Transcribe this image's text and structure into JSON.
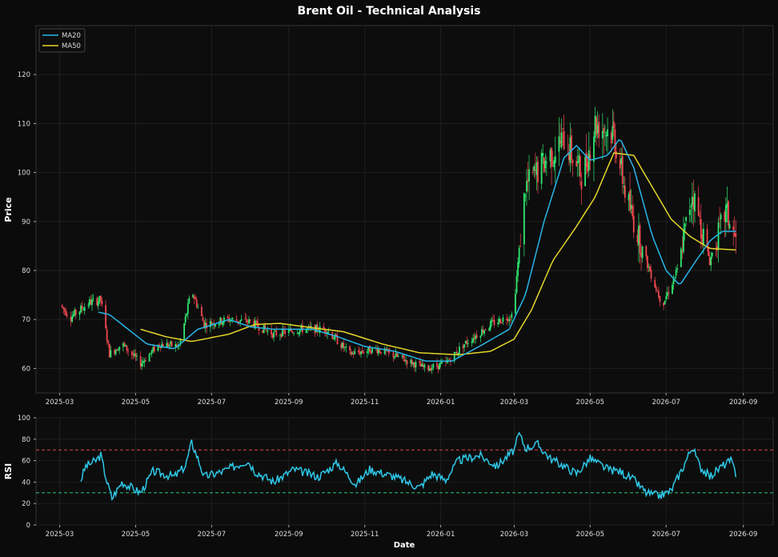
{
  "chart_data": {
    "title": "Brent Oil - Technical Analysis",
    "type": "candlestick",
    "colors": {
      "up": "#2ee86f",
      "down": "#f0474f",
      "ma20": "#27b6e8",
      "ma50": "#e6d52a",
      "rsi": "#2ec8e8",
      "overbought": "#e0474f",
      "oversold": "#28c77a",
      "grid": "#1f1f1f",
      "background": "#0b0b0b",
      "axes_bg": "#0d0d0d"
    },
    "x_axis": {
      "label": "Date",
      "range": [
        "2025-02-10",
        "2026-09-25"
      ],
      "ticks": [
        "2025-03",
        "2025-05",
        "2025-07",
        "2025-09",
        "2025-11",
        "2026-01",
        "2026-03",
        "2026-05",
        "2026-07",
        "2026-09"
      ]
    },
    "price_panel": {
      "ylabel": "Price",
      "ylim": [
        55,
        130
      ],
      "yticks": [
        60,
        70,
        80,
        90,
        100,
        110,
        120
      ],
      "grid": true,
      "legend": {
        "placement": "top-left",
        "entries": [
          "MA20",
          "MA50"
        ]
      },
      "candles_start_date": "2025-03-01",
      "candles_end_date": "2026-08-26",
      "price_path": [
        [
          "2025-03-01",
          73
        ],
        [
          "2025-03-10",
          70.5
        ],
        [
          "2025-03-25",
          73.5
        ],
        [
          "2025-04-03",
          74
        ],
        [
          "2025-04-10",
          63
        ],
        [
          "2025-04-20",
          65
        ],
        [
          "2025-05-05",
          61
        ],
        [
          "2025-05-20",
          65
        ],
        [
          "2025-06-05",
          64.5
        ],
        [
          "2025-06-15",
          76
        ],
        [
          "2025-06-25",
          69
        ],
        [
          "2025-07-15",
          70
        ],
        [
          "2025-08-01",
          69.5
        ],
        [
          "2025-08-20",
          67
        ],
        [
          "2025-09-10",
          68
        ],
        [
          "2025-10-01",
          68
        ],
        [
          "2025-10-20",
          63
        ],
        [
          "2025-11-10",
          64
        ],
        [
          "2025-12-01",
          62
        ],
        [
          "2025-12-20",
          60
        ],
        [
          "2026-01-05",
          61
        ],
        [
          "2026-01-20",
          65
        ],
        [
          "2026-02-10",
          69
        ],
        [
          "2026-02-28",
          71
        ],
        [
          "2026-03-10",
          97
        ],
        [
          "2026-03-25",
          102
        ],
        [
          "2026-04-10",
          107
        ],
        [
          "2026-04-25",
          99
        ],
        [
          "2026-05-05",
          110
        ],
        [
          "2026-05-20",
          108
        ],
        [
          "2026-05-30",
          95
        ],
        [
          "2026-06-15",
          82
        ],
        [
          "2026-06-28",
          73
        ],
        [
          "2026-07-10",
          80
        ],
        [
          "2026-07-22",
          96
        ],
        [
          "2026-08-05",
          82
        ],
        [
          "2026-08-18",
          92
        ],
        [
          "2026-08-26",
          86
        ]
      ],
      "ma20_path": [
        [
          "2025-04-01",
          71.5
        ],
        [
          "2025-04-10",
          71
        ],
        [
          "2025-04-25",
          68
        ],
        [
          "2025-05-10",
          65
        ],
        [
          "2025-06-01",
          64
        ],
        [
          "2025-06-20",
          68
        ],
        [
          "2025-07-15",
          70
        ],
        [
          "2025-08-01",
          68.5
        ],
        [
          "2025-08-20",
          68
        ],
        [
          "2025-09-20",
          68
        ],
        [
          "2025-10-10",
          66.5
        ],
        [
          "2025-11-01",
          64.5
        ],
        [
          "2025-11-25",
          63.5
        ],
        [
          "2025-12-20",
          61.5
        ],
        [
          "2026-01-10",
          61.5
        ],
        [
          "2026-02-01",
          64.5
        ],
        [
          "2026-02-25",
          68
        ],
        [
          "2026-03-10",
          75
        ],
        [
          "2026-03-25",
          90
        ],
        [
          "2026-04-10",
          103
        ],
        [
          "2026-04-20",
          105.5
        ],
        [
          "2026-05-01",
          102.5
        ],
        [
          "2026-05-15",
          103.5
        ],
        [
          "2026-05-25",
          107
        ],
        [
          "2026-06-05",
          101
        ],
        [
          "2026-06-20",
          87
        ],
        [
          "2026-07-01",
          80
        ],
        [
          "2026-07-12",
          77
        ],
        [
          "2026-07-25",
          82
        ],
        [
          "2026-08-05",
          86
        ],
        [
          "2026-08-15",
          88
        ],
        [
          "2026-08-26",
          88
        ]
      ],
      "ma50_path": [
        [
          "2025-05-05",
          68
        ],
        [
          "2025-05-25",
          66.5
        ],
        [
          "2025-06-15",
          65.5
        ],
        [
          "2025-07-15",
          67
        ],
        [
          "2025-08-05",
          69
        ],
        [
          "2025-08-25",
          69.2
        ],
        [
          "2025-09-20",
          68.3
        ],
        [
          "2025-10-15",
          67.5
        ],
        [
          "2025-11-15",
          65
        ],
        [
          "2025-12-15",
          63.2
        ],
        [
          "2026-01-15",
          62.8
        ],
        [
          "2026-02-10",
          63.5
        ],
        [
          "2026-03-01",
          66
        ],
        [
          "2026-03-15",
          72
        ],
        [
          "2026-04-01",
          82
        ],
        [
          "2026-04-20",
          89
        ],
        [
          "2026-05-05",
          95
        ],
        [
          "2026-05-20",
          104
        ],
        [
          "2026-06-05",
          103.5
        ],
        [
          "2026-06-20",
          97
        ],
        [
          "2026-07-05",
          90.5
        ],
        [
          "2026-07-20",
          87
        ],
        [
          "2026-08-05",
          84.5
        ],
        [
          "2026-08-26",
          84.2
        ]
      ]
    },
    "rsi_panel": {
      "ylabel": "RSI",
      "ylim": [
        0,
        100
      ],
      "yticks": [
        0,
        20,
        40,
        60,
        80,
        100
      ],
      "overbought": 70,
      "oversold": 30,
      "rsi_path": [
        [
          "2025-03-18",
          42
        ],
        [
          "2025-03-22",
          55
        ],
        [
          "2025-03-30",
          60
        ],
        [
          "2025-04-03",
          65
        ],
        [
          "2025-04-08",
          40
        ],
        [
          "2025-04-12",
          25
        ],
        [
          "2025-04-20",
          40
        ],
        [
          "2025-05-05",
          30
        ],
        [
          "2025-05-15",
          50
        ],
        [
          "2025-06-01",
          45
        ],
        [
          "2025-06-10",
          55
        ],
        [
          "2025-06-15",
          77
        ],
        [
          "2025-06-20",
          62
        ],
        [
          "2025-06-25",
          45
        ],
        [
          "2025-07-10",
          50
        ],
        [
          "2025-07-30",
          60
        ],
        [
          "2025-08-05",
          50
        ],
        [
          "2025-08-20",
          40
        ],
        [
          "2025-09-05",
          52
        ],
        [
          "2025-09-25",
          45
        ],
        [
          "2025-10-10",
          58
        ],
        [
          "2025-10-25",
          38
        ],
        [
          "2025-11-05",
          52
        ],
        [
          "2025-11-25",
          45
        ],
        [
          "2025-12-15",
          35
        ],
        [
          "2025-12-25",
          48
        ],
        [
          "2026-01-05",
          42
        ],
        [
          "2026-01-15",
          60
        ],
        [
          "2026-02-01",
          65
        ],
        [
          "2026-02-15",
          55
        ],
        [
          "2026-03-01",
          70
        ],
        [
          "2026-03-05",
          85
        ],
        [
          "2026-03-10",
          72
        ],
        [
          "2026-03-20",
          75
        ],
        [
          "2026-03-30",
          62
        ],
        [
          "2026-04-10",
          55
        ],
        [
          "2026-04-20",
          48
        ],
        [
          "2026-05-01",
          62
        ],
        [
          "2026-05-15",
          52
        ],
        [
          "2026-05-25",
          50
        ],
        [
          "2026-06-05",
          42
        ],
        [
          "2026-06-15",
          30
        ],
        [
          "2026-06-25",
          27
        ],
        [
          "2026-07-05",
          32
        ],
        [
          "2026-07-15",
          55
        ],
        [
          "2026-07-22",
          73
        ],
        [
          "2026-07-28",
          55
        ],
        [
          "2026-08-05",
          45
        ],
        [
          "2026-08-15",
          55
        ],
        [
          "2026-08-22",
          60
        ],
        [
          "2026-08-26",
          48
        ]
      ]
    }
  }
}
